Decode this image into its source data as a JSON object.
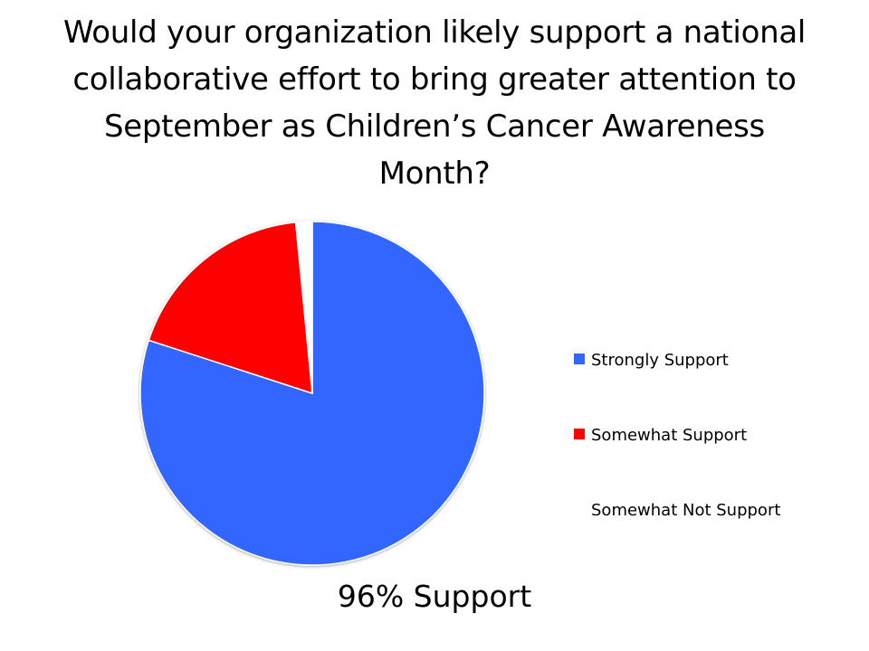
{
  "chart_data": {
    "type": "pie",
    "title": "Would your organization likely support a national collaborative effort to bring greater attention to September as Children’s Cancer Awareness Month?",
    "subtitle": "",
    "categories": [
      "Strongly Support",
      "Somewhat Support",
      "Somewhat Not Support"
    ],
    "values": [
      78,
      18,
      1.5
    ],
    "value_unit": "percent (estimated from slice angles)",
    "colors": [
      "#3366ff",
      "#ff0000",
      "#ffffff"
    ],
    "legend_position": "right",
    "start_angle": "12 o'clock, clockwise",
    "annotation": "96% Support"
  }
}
